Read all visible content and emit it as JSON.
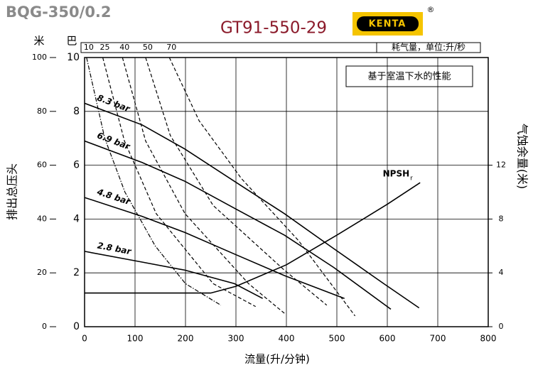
{
  "chart_data": {
    "type": "line",
    "model": "BQG-350/0.2",
    "title": "GT91-550-29",
    "brand": "KENTA",
    "brand_mark": "®",
    "annotation": "基于室温下水的性能",
    "top_axis_label": "耗气量，单位:升/秒",
    "x_label": "流量(升/分钟)",
    "y_label": "排出总压头",
    "y_unit_meter": "米",
    "y_unit_bar": "巴",
    "y2_label": "气蚀余量(米)",
    "npsh_subscript": "r",
    "xlim": [
      0,
      800
    ],
    "xticks": [
      0,
      100,
      200,
      300,
      400,
      500,
      600,
      700,
      800
    ],
    "ylim": [
      0,
      10
    ],
    "yticks": [
      0,
      2,
      4,
      6,
      8,
      10
    ],
    "ymeterlim": [
      0,
      100
    ],
    "ymeterticks": [
      0,
      20,
      40,
      60,
      80,
      100
    ],
    "y2lim": [
      0,
      20
    ],
    "y2ticks": [
      0,
      4,
      8,
      12
    ],
    "grid": true,
    "series": [
      {
        "name": "8.3 bar",
        "color": "#000000",
        "style": "solid",
        "x": [
          0,
          114,
          199,
          297,
          396,
          494,
          593,
          663
        ],
        "values": [
          8.3,
          7.5,
          6.6,
          5.4,
          4.2,
          2.9,
          1.6,
          0.7
        ]
      },
      {
        "name": "6.9 bar",
        "color": "#000000",
        "style": "solid",
        "x": [
          0,
          114,
          199,
          297,
          396,
          494,
          607
        ],
        "values": [
          6.9,
          6.1,
          5.4,
          4.4,
          3.4,
          2.2,
          0.65
        ]
      },
      {
        "name": "4.8 bar",
        "color": "#000000",
        "style": "solid",
        "x": [
          0,
          114,
          199,
          297,
          396,
          515
        ],
        "values": [
          4.8,
          4.1,
          3.5,
          2.7,
          1.9,
          1.05
        ]
      },
      {
        "name": "2.8 bar",
        "color": "#000000",
        "style": "solid",
        "x": [
          0,
          114,
          199,
          297,
          353
        ],
        "values": [
          2.8,
          2.4,
          2.1,
          1.6,
          1.05
        ]
      },
      {
        "name": "10",
        "color": "#000000",
        "style": "dashdot",
        "x": [
          4,
          40,
          80,
          140,
          200,
          270
        ],
        "values": [
          10,
          7,
          5,
          3,
          1.6,
          0.8
        ]
      },
      {
        "name": "25",
        "color": "#000000",
        "style": "dashed",
        "x": [
          36,
          79,
          142,
          255,
          339
        ],
        "values": [
          10,
          6.9,
          4.2,
          1.6,
          0.75
        ]
      },
      {
        "name": "40",
        "color": "#000000",
        "style": "dashed",
        "x": [
          75,
          121,
          199,
          325,
          396
        ],
        "values": [
          10,
          6.9,
          4.2,
          1.6,
          0.5
        ]
      },
      {
        "name": "50",
        "color": "#000000",
        "style": "dashed",
        "x": [
          121,
          170,
          255,
          396,
          480
        ],
        "values": [
          10,
          7.1,
          4.5,
          2.1,
          0.8
        ]
      },
      {
        "name": "70",
        "color": "#000000",
        "style": "dashed",
        "x": [
          168,
          227,
          311,
          424,
          536
        ],
        "values": [
          10,
          7.65,
          5.5,
          3.2,
          0.4
        ]
      },
      {
        "name": "NPSH",
        "color": "#000000",
        "style": "solid",
        "axis": "y2",
        "x": [
          0,
          250,
          300,
          400,
          500,
          600,
          665
        ],
        "values": [
          2.5,
          2.5,
          3.0,
          4.6,
          6.8,
          9.1,
          10.7
        ]
      }
    ]
  }
}
